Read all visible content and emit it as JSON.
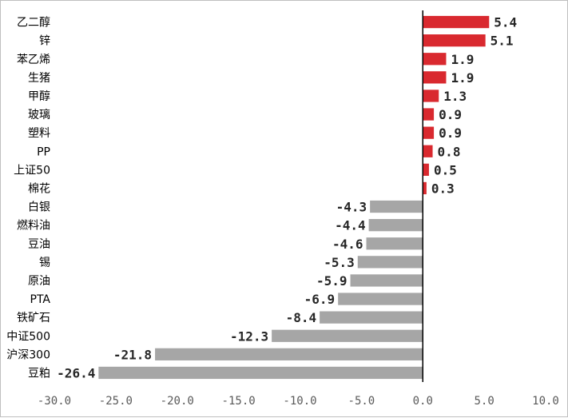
{
  "chart_data": {
    "type": "bar",
    "orientation": "horizontal",
    "categories": [
      "乙二醇",
      "锌",
      "苯乙烯",
      "生猪",
      "甲醇",
      "玻璃",
      "塑料",
      "PP",
      "上证50",
      "棉花",
      "白银",
      "燃料油",
      "豆油",
      "锡",
      "原油",
      "PTA",
      "铁矿石",
      "中证500",
      "沪深300",
      "豆粕"
    ],
    "values": [
      5.4,
      5.1,
      1.9,
      1.9,
      1.3,
      0.9,
      0.9,
      0.8,
      0.5,
      0.3,
      -4.3,
      -4.4,
      -4.6,
      -5.3,
      -5.9,
      -6.9,
      -8.4,
      -12.3,
      -21.8,
      -26.4
    ],
    "value_labels": [
      "5.4",
      "5.1",
      "1.9",
      "1.9",
      "1.3",
      "0.9",
      "0.9",
      "0.8",
      "0.5",
      "0.3",
      "-4.3",
      "-4.4",
      "-4.6",
      "-5.3",
      "-5.9",
      "-6.9",
      "-8.4",
      "-12.3",
      "-21.8",
      "-26.4"
    ],
    "xlim": [
      -30,
      10
    ],
    "xticks": [
      -30,
      -25,
      -20,
      -15,
      -10,
      -5,
      0,
      5,
      10
    ],
    "xtick_labels": [
      "-30.0",
      "-25.0",
      "-20.0",
      "-15.0",
      "-10.0",
      "-5.0",
      "0.0",
      "5.0",
      "10.0"
    ],
    "title": "",
    "xlabel": "",
    "ylabel": "",
    "grid": false,
    "legend": "none",
    "colors": {
      "positive": "#d9292f",
      "negative": "#a6a6a6",
      "axis": "#000000",
      "tick_text": "#595959",
      "label_text": "#262626"
    }
  }
}
